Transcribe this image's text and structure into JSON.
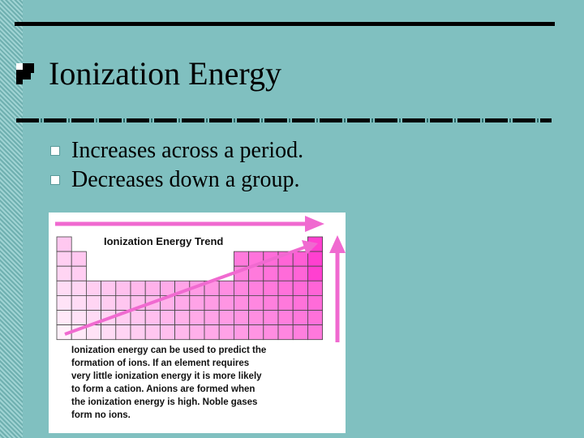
{
  "slide": {
    "title": "Ionization Energy",
    "bullets": [
      "Increases across a period.",
      "Decreases down a group."
    ]
  },
  "figure": {
    "title": "Ionization Energy Trend",
    "caption_lines": [
      "Ionization energy can be used to predict the",
      "formation of  ions.  If an element requires",
      "very little ionization energy it is more likely",
      "to form a cation.  Anions are formed when",
      "the ionization energy is high.  Noble gases",
      "form no ions."
    ],
    "arrow_color": "#f06ad0",
    "high_color": "#ff40d0"
  },
  "colors": {
    "background": "#80c0c0",
    "bullet": "#ffffff"
  }
}
